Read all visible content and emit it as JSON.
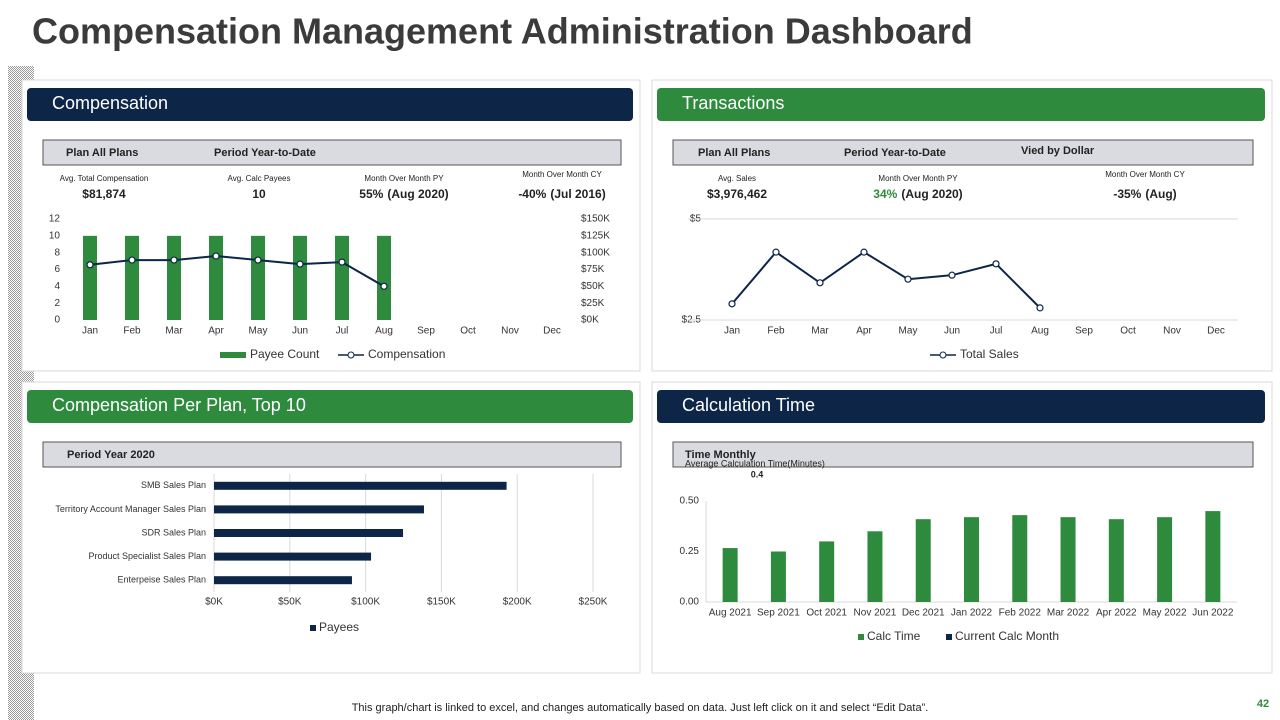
{
  "title": "Compensation Management Administration Dashboard",
  "footer": "This graph/chart is linked to excel, and changes automatically based on data. Just left click on it and select “Edit Data”.",
  "page_number": "42",
  "panels": [
    {
      "header": "Compensation",
      "filters": [
        "Plan All Plans",
        "Period Year-to-Date"
      ],
      "kpis": [
        {
          "label": "Avg. Total Compensation",
          "value": "$81,874"
        },
        {
          "label": "Avg. Calc Payees",
          "value": "10"
        },
        {
          "label": "Month Over Month PY",
          "value": "55%",
          "detail": "(Aug 2020)"
        },
        {
          "label": "Month Over Month CY",
          "value": "-40%",
          "detail": "(Jul 2016)"
        }
      ]
    },
    {
      "header": "Transactions",
      "filters": [
        "Plan All Plans",
        "Period Year-to-Date",
        "Vied by Dollar"
      ],
      "kpis": [
        {
          "label": "Avg. Sales",
          "value": "$3,976,462"
        },
        {
          "label": "Month Over Month PY",
          "value": "34%",
          "detail": "(Aug 2020)",
          "value_color": "#2e8b3e"
        },
        {
          "label": "Month Over Month CY",
          "value": "-35%",
          "detail": "(Aug)"
        }
      ]
    },
    {
      "header": "Compensation Per Plan, Top 10",
      "filters": [
        "Period Year 2020"
      ],
      "kpis": []
    },
    {
      "header": "Calculation Time",
      "filters": [
        "Time Monthly"
      ],
      "kpis": []
    }
  ],
  "chart_data": [
    {
      "type": "combo",
      "categories": [
        "Jan",
        "Feb",
        "Mar",
        "Apr",
        "May",
        "Jun",
        "Jul",
        "Aug",
        "Sep",
        "Oct",
        "Nov",
        "Dec"
      ],
      "series": [
        {
          "name": "Payee Count",
          "type": "bar",
          "color": "#2e8b3e",
          "values": [
            10,
            10,
            10,
            10,
            10,
            10,
            10,
            10,
            null,
            null,
            null,
            null
          ]
        },
        {
          "name": "Compensation",
          "type": "line",
          "axis": "y2",
          "color": "#0d2547",
          "values": [
            82000,
            89000,
            89000,
            95000,
            89000,
            83000,
            86000,
            50000,
            null,
            null,
            null,
            null
          ]
        }
      ],
      "ylim": [
        0,
        12
      ],
      "yticks": [
        0,
        2,
        4,
        6,
        8,
        10,
        12
      ],
      "y2lim": [
        0,
        150000
      ],
      "y2ticks": [
        {
          "value": 0,
          "label": "$0K"
        },
        {
          "value": 25000,
          "label": "$25K"
        },
        {
          "value": 50000,
          "label": "$50K"
        },
        {
          "value": 75000,
          "label": "$75K"
        },
        {
          "value": 100000,
          "label": "$100K"
        },
        {
          "value": 125000,
          "label": "$125K"
        },
        {
          "value": 150000,
          "label": "$150K"
        }
      ],
      "grid": false
    },
    {
      "type": "line",
      "categories": [
        "Jan",
        "Feb",
        "Mar",
        "Apr",
        "May",
        "Jun",
        "Jul",
        "Aug",
        "Sep",
        "Oct",
        "Nov",
        "Dec"
      ],
      "series": [
        {
          "name": "Total Sales",
          "color": "#0d2547",
          "values": [
            2.9,
            4.18,
            3.42,
            4.18,
            3.51,
            3.61,
            3.89,
            2.8,
            null,
            null,
            null,
            null
          ]
        }
      ],
      "ylim": [
        2.5,
        5
      ],
      "yticks": [
        {
          "value": 2.5,
          "label": "$2.5"
        },
        {
          "value": 5,
          "label": "$5"
        }
      ],
      "grid": true
    },
    {
      "type": "hbar",
      "categories": [
        "SMB Sales Plan",
        "Territory Account Manager Sales Plan",
        "SDR Sales Plan",
        "Product Specialist Sales Plan",
        "Enterpeise Sales Plan"
      ],
      "series": [
        {
          "name": "Payees",
          "color": "#0d2547",
          "values": [
            193000,
            138500,
            124700,
            103600,
            91000
          ]
        }
      ],
      "xlim": [
        0,
        250000
      ],
      "xticks": [
        {
          "value": 0,
          "label": "$0K"
        },
        {
          "value": 50000,
          "label": "$50K"
        },
        {
          "value": 100000,
          "label": "$100K"
        },
        {
          "value": 150000,
          "label": "$150K"
        },
        {
          "value": 200000,
          "label": "$200K"
        },
        {
          "value": 250000,
          "label": "$250K"
        }
      ],
      "grid": true
    },
    {
      "type": "bar",
      "annotation": "Average Calculation Time(Minutes)",
      "annotation_value": "0.4",
      "categories": [
        "Aug 2021",
        "Sep 2021",
        "Oct 2021",
        "Nov 2021",
        "Dec 2021",
        "Jan 2022",
        "Feb 2022",
        "Mar 2022",
        "Apr 2022",
        "May 2022",
        "Jun 2022"
      ],
      "series": [
        {
          "name": "Calc Time",
          "color": "#2e8b3e",
          "values": [
            0.267,
            0.25,
            0.3,
            0.35,
            0.41,
            0.42,
            0.43,
            0.42,
            0.41,
            0.42,
            0.45
          ]
        },
        {
          "name": "Current Calc Month",
          "color": "#0d2547",
          "values": [
            null,
            null,
            null,
            null,
            null,
            null,
            null,
            null,
            null,
            null,
            null
          ]
        }
      ],
      "ylim": [
        0,
        0.5
      ],
      "yticks": [
        {
          "value": 0,
          "label": "0.00"
        },
        {
          "value": 0.25,
          "label": "0.25"
        },
        {
          "value": 0.5,
          "label": "0.50"
        }
      ],
      "grid": false
    }
  ]
}
